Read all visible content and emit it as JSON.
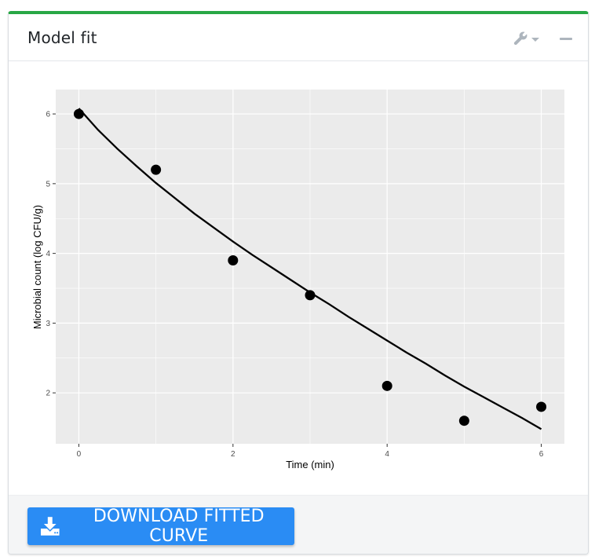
{
  "card": {
    "title": "Model fit",
    "accent_color": "#28a745",
    "tools": {
      "wrench_icon": "wrench-icon",
      "collapse_icon": "minus-icon"
    }
  },
  "download": {
    "label": "DOWNLOAD FITTED CURVE",
    "icon": "download-icon",
    "color": "#2a8cf4"
  },
  "chart_data": {
    "type": "scatter",
    "title": "",
    "xlabel": "Time (min)",
    "ylabel": "Microbial count (log CFU/g)",
    "xlim": [
      -0.3,
      6.3
    ],
    "ylim": [
      1.27,
      6.35
    ],
    "grid": true,
    "panel_background": "#ebebeb",
    "x_ticks": [
      0,
      2,
      4,
      6
    ],
    "y_ticks": [
      2,
      3,
      4,
      5,
      6
    ],
    "x_tick_labels": [
      "0",
      "2",
      "4",
      "6"
    ],
    "y_tick_labels": [
      "2",
      "3",
      "4",
      "5",
      "6"
    ],
    "points": {
      "x": [
        0,
        1,
        2,
        3,
        4,
        5,
        6
      ],
      "y": [
        6.0,
        5.2,
        3.9,
        3.4,
        2.1,
        1.6,
        1.8
      ],
      "color": "#000000"
    },
    "fitted_curve": {
      "x": [
        0,
        0.25,
        0.5,
        0.75,
        1,
        1.25,
        1.5,
        1.75,
        2,
        2.25,
        2.5,
        2.75,
        3,
        3.25,
        3.5,
        3.75,
        4,
        4.25,
        4.5,
        4.75,
        5,
        5.25,
        5.5,
        5.75,
        6
      ],
      "y": [
        6.08,
        5.77,
        5.5,
        5.25,
        5.01,
        4.79,
        4.57,
        4.37,
        4.17,
        3.98,
        3.8,
        3.62,
        3.44,
        3.27,
        3.09,
        2.92,
        2.75,
        2.58,
        2.42,
        2.25,
        2.09,
        1.94,
        1.79,
        1.64,
        1.48
      ],
      "color": "#000000"
    }
  }
}
